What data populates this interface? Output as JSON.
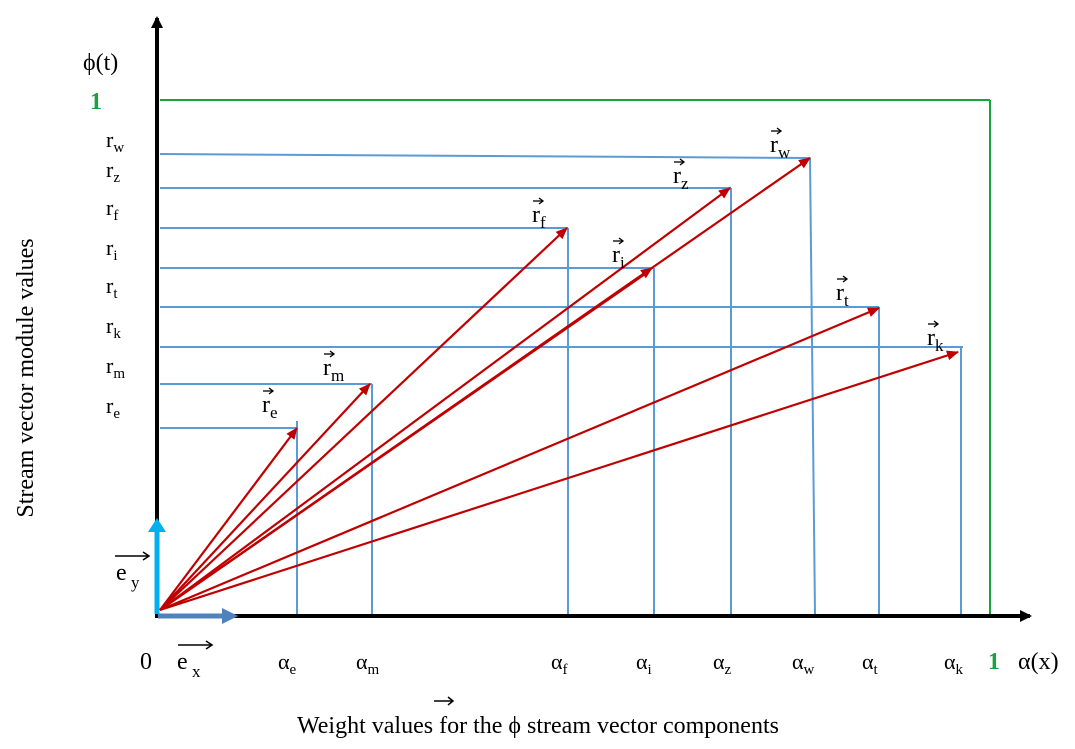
{
  "axes": {
    "y_axis_label": "ϕ(t)",
    "x_axis_label": "α(x)",
    "origin_label": "0",
    "unit_one_label_y": "1",
    "unit_one_label_x": "1",
    "y_title": "Stream vector module values",
    "x_title_before": "Weight values for the ",
    "x_title_symbol": "ϕ",
    "x_title_after": " stream vector components",
    "unit_vector_x": "e",
    "unit_vector_x_sub": "x",
    "unit_vector_y": "e",
    "unit_vector_y_sub": "y"
  },
  "colors": {
    "axis": "#000000",
    "guide_lines": "#5b9bd5",
    "vectors": "#c00000",
    "unit_box": "#1aa33a",
    "unit_vector_y": "#00b0f0",
    "unit_vector_x": "#4f81bd"
  },
  "vectors": [
    {
      "id": "e",
      "name": "r",
      "sub": "e",
      "y_label_sub": "e",
      "alpha_sub": "e"
    },
    {
      "id": "m",
      "name": "r",
      "sub": "m",
      "y_label_sub": "m",
      "alpha_sub": "m"
    },
    {
      "id": "f",
      "name": "r",
      "sub": "f",
      "y_label_sub": "f",
      "alpha_sub": "f"
    },
    {
      "id": "i",
      "name": "r",
      "sub": "i",
      "y_label_sub": "i",
      "alpha_sub": "i"
    },
    {
      "id": "z",
      "name": "r",
      "sub": "z",
      "y_label_sub": "z",
      "alpha_sub": "z"
    },
    {
      "id": "w",
      "name": "r",
      "sub": "w",
      "y_label_sub": "w",
      "alpha_sub": "w"
    },
    {
      "id": "t",
      "name": "r",
      "sub": "t",
      "y_label_sub": "t",
      "alpha_sub": "t"
    },
    {
      "id": "k",
      "name": "r",
      "sub": "k",
      "y_label_sub": "k",
      "alpha_sub": "k"
    }
  ],
  "y_labels": [
    {
      "base": "r",
      "sub": "w"
    },
    {
      "base": "r",
      "sub": "z"
    },
    {
      "base": "r",
      "sub": "f"
    },
    {
      "base": "r",
      "sub": "i"
    },
    {
      "base": "r",
      "sub": "t"
    },
    {
      "base": "r",
      "sub": "k"
    },
    {
      "base": "r",
      "sub": "m"
    },
    {
      "base": "r",
      "sub": "e"
    }
  ],
  "x_labels": [
    {
      "base": "α",
      "sub": "e"
    },
    {
      "base": "α",
      "sub": "m"
    },
    {
      "base": "α",
      "sub": "f"
    },
    {
      "base": "α",
      "sub": "i"
    },
    {
      "base": "α",
      "sub": "z"
    },
    {
      "base": "α",
      "sub": "w"
    },
    {
      "base": "α",
      "sub": "t"
    },
    {
      "base": "α",
      "sub": "k"
    }
  ]
}
